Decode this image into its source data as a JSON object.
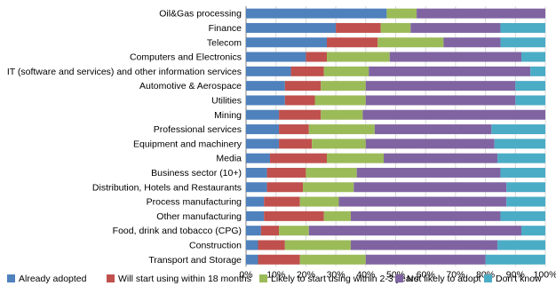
{
  "chart_data": {
    "type": "bar",
    "orientation": "horizontal",
    "stacked": true,
    "percent_axis": true,
    "title": "",
    "xlabel": "",
    "ylabel": "",
    "xlim": [
      0,
      100
    ],
    "x_ticks": [
      "0%",
      "10%",
      "20%",
      "30%",
      "40%",
      "50%",
      "60%",
      "70%",
      "80%",
      "90%",
      "100%"
    ],
    "grid": "vertical",
    "legend_position": "bottom",
    "categories": [
      "Oil&Gas processing",
      "Finance",
      "Telecom",
      "Computers and Electronics",
      "IT (software and services) and other information services",
      "Automotive & Aerospace",
      "Utilities",
      "Mining",
      "Professional services",
      "Equipment and machinery",
      "Media",
      "Business sector (10+)",
      "Distribution, Hotels and Restaurants",
      "Process manufacturing",
      "Other manufacturing",
      "Food, drink and tobacco (CPG)",
      "Construction",
      "Transport and Storage"
    ],
    "series": [
      {
        "name": "Already adopted",
        "color": "#4f81bd",
        "values": [
          47,
          30,
          27,
          20,
          15,
          13,
          13,
          11,
          11,
          11,
          8,
          7,
          7,
          6,
          6,
          5,
          4,
          4
        ]
      },
      {
        "name": "Will start using within 18 months",
        "color": "#c0504d",
        "values": [
          0,
          15,
          17,
          7,
          11,
          12,
          10,
          14,
          10,
          11,
          19,
          13,
          12,
          12,
          20,
          6,
          9,
          14
        ]
      },
      {
        "name": "Likely to start using within 2-3 years",
        "color": "#9bbb59",
        "values": [
          10,
          10,
          22,
          21,
          15,
          15,
          17,
          14,
          22,
          18,
          19,
          17,
          17,
          13,
          9,
          10,
          22,
          22
        ]
      },
      {
        "name": "Not likely to adopt it",
        "color": "#8064a2",
        "values": [
          43,
          30,
          19,
          44,
          54,
          50,
          50,
          61,
          39,
          43,
          38,
          48,
          51,
          56,
          50,
          71,
          49,
          40
        ]
      },
      {
        "name": "Don't know",
        "color": "#4bacc6",
        "values": [
          0,
          15,
          15,
          8,
          5,
          10,
          10,
          0,
          18,
          17,
          16,
          15,
          13,
          13,
          15,
          8,
          16,
          20
        ]
      }
    ]
  }
}
